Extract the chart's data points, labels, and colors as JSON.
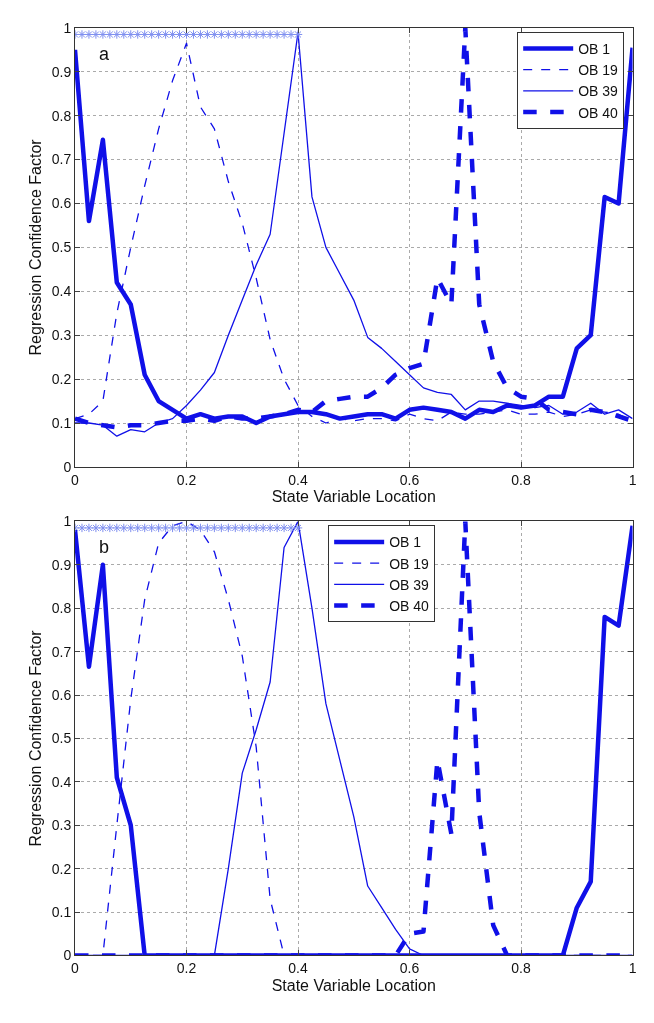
{
  "chart_data": [
    {
      "type": "line",
      "xlabel": "State Variable Location",
      "ylabel": "Regression Confidence Factor",
      "annotations": [
        "a"
      ],
      "xlim": [
        0,
        1
      ],
      "ylim": [
        0,
        1
      ],
      "xticks": [
        0,
        0.2,
        0.4,
        0.6,
        0.8,
        1
      ],
      "yticks": [
        0,
        0.1,
        0.2,
        0.3,
        0.4,
        0.5,
        0.6,
        0.7,
        0.8,
        0.9,
        1
      ],
      "grid": true,
      "legend": "top right",
      "x": [
        0,
        0.025,
        0.05,
        0.075,
        0.1,
        0.125,
        0.15,
        0.175,
        0.2,
        0.225,
        0.25,
        0.275,
        0.3,
        0.325,
        0.35,
        0.375,
        0.4,
        0.425,
        0.45,
        0.475,
        0.5,
        0.525,
        0.55,
        0.575,
        0.6,
        0.625,
        0.65,
        0.675,
        0.7,
        0.725,
        0.75,
        0.775,
        0.8,
        0.825,
        0.85,
        0.875,
        0.9,
        0.925,
        0.95,
        0.975,
        1
      ],
      "series": [
        {
          "name": "OB 1",
          "color": "#1010e8",
          "line_style": "solid",
          "values": [
            0.95,
            0.56,
            0.745,
            0.42,
            0.37,
            0.21,
            0.15,
            0.13,
            0.11,
            0.12,
            0.11,
            0.115,
            0.115,
            0.1,
            0.115,
            0.12,
            0.125,
            0.125,
            0.12,
            0.11,
            0.115,
            0.12,
            0.12,
            0.11,
            0.13,
            0.135,
            0.13,
            0.125,
            0.11,
            0.13,
            0.125,
            0.14,
            0.135,
            0.14,
            0.16,
            0.16,
            0.27,
            0.3,
            0.615,
            0.6,
            0.955
          ]
        },
        {
          "name": "OB 19",
          "color": "#1010e8",
          "line_style": "dashed",
          "values": [
            0.11,
            0.12,
            0.15,
            0.35,
            0.5,
            0.64,
            0.77,
            0.88,
            0.965,
            0.82,
            0.77,
            0.65,
            0.555,
            0.43,
            0.29,
            0.2,
            0.14,
            0.115,
            0.1,
            0.11,
            0.105,
            0.11,
            0.11,
            0.105,
            0.12,
            0.11,
            0.105,
            0.125,
            0.12,
            0.12,
            0.125,
            0.13,
            0.12,
            0.12,
            0.125,
            0.115,
            0.12,
            0.13,
            0.125,
            0.12,
            0.105
          ]
        },
        {
          "name": "OB 39",
          "color": "#1010e8",
          "line_style": "solid",
          "values": [
            0.1,
            0.1,
            0.095,
            0.07,
            0.085,
            0.08,
            0.1,
            0.11,
            0.14,
            0.175,
            0.215,
            0.3,
            0.38,
            0.46,
            0.53,
            0.76,
            0.99,
            0.615,
            0.5,
            0.44,
            0.38,
            0.295,
            0.27,
            0.24,
            0.21,
            0.18,
            0.17,
            0.165,
            0.13,
            0.15,
            0.15,
            0.145,
            0.14,
            0.135,
            0.14,
            0.12,
            0.125,
            0.145,
            0.12,
            0.13,
            0.11
          ]
        },
        {
          "name": "OB 40",
          "color": "#1010e8",
          "line_style": "dashed",
          "values": [
            0.11,
            0.1,
            0.095,
            0.09,
            0.095,
            0.095,
            0.1,
            0.105,
            0.105,
            0.11,
            0.105,
            0.115,
            0.11,
            0.11,
            0.115,
            0.12,
            0.13,
            0.125,
            0.15,
            0.155,
            0.16,
            0.16,
            0.18,
            0.21,
            0.225,
            0.235,
            0.43,
            0.37,
            1.0,
            0.37,
            0.24,
            0.18,
            0.16,
            0.155,
            0.13,
            0.125,
            0.12,
            0.13,
            0.125,
            0.115,
            0.105
          ]
        },
        {
          "type": "scatter",
          "marker": "cross",
          "color": "#7f8ff0",
          "x": [
            0,
            0.0125,
            0.025,
            0.0375,
            0.05,
            0.0625,
            0.075,
            0.0875,
            0.1,
            0.1125,
            0.125,
            0.1375,
            0.15,
            0.1625,
            0.175,
            0.1875,
            0.2,
            0.2125,
            0.225,
            0.2375,
            0.25,
            0.2625,
            0.275,
            0.2875,
            0.3,
            0.3125,
            0.325,
            0.3375,
            0.35,
            0.3625,
            0.375,
            0.3875,
            0.4
          ],
          "values": [
            0.985,
            0.985,
            0.985,
            0.985,
            0.985,
            0.985,
            0.985,
            0.985,
            0.985,
            0.985,
            0.985,
            0.985,
            0.985,
            0.985,
            0.985,
            0.985,
            0.985,
            0.985,
            0.985,
            0.985,
            0.985,
            0.985,
            0.985,
            0.985,
            0.985,
            0.985,
            0.985,
            0.985,
            0.985,
            0.985,
            0.985,
            0.985,
            0.985
          ]
        }
      ]
    },
    {
      "type": "line",
      "xlabel": "State Variable Location",
      "ylabel": "Regression Confidence Factor",
      "annotations": [
        "b"
      ],
      "xlim": [
        0,
        1
      ],
      "ylim": [
        0,
        1
      ],
      "xticks": [
        0,
        0.2,
        0.4,
        0.6,
        0.8,
        1
      ],
      "yticks": [
        0,
        0.1,
        0.2,
        0.3,
        0.4,
        0.5,
        0.6,
        0.7,
        0.8,
        0.9,
        1
      ],
      "grid": true,
      "legend": "top",
      "x": [
        0,
        0.025,
        0.05,
        0.075,
        0.1,
        0.125,
        0.15,
        0.175,
        0.2,
        0.225,
        0.25,
        0.275,
        0.3,
        0.325,
        0.35,
        0.375,
        0.4,
        0.425,
        0.45,
        0.475,
        0.5,
        0.525,
        0.55,
        0.575,
        0.6,
        0.625,
        0.65,
        0.675,
        0.7,
        0.725,
        0.75,
        0.775,
        0.8,
        0.825,
        0.85,
        0.875,
        0.9,
        0.925,
        0.95,
        0.975,
        1
      ],
      "series": [
        {
          "name": "OB 1",
          "color": "#1010e8",
          "line_style": "solid",
          "values": [
            0.98,
            0.665,
            0.9,
            0.41,
            0.3,
            0,
            0,
            0,
            0,
            0,
            0,
            0,
            0,
            0,
            0,
            0,
            0,
            0,
            0,
            0,
            0,
            0,
            0,
            0,
            0,
            0,
            0,
            0,
            0,
            0,
            0,
            0,
            0,
            0,
            0,
            0,
            0.11,
            0.17,
            0.78,
            0.76,
            0.99
          ]
        },
        {
          "name": "OB 19",
          "color": "#1010e8",
          "line_style": "dashed",
          "values": [
            0,
            0,
            0,
            0.3,
            0.59,
            0.82,
            0.95,
            0.99,
            1.0,
            0.98,
            0.93,
            0.82,
            0.69,
            0.48,
            0.13,
            0,
            0,
            0,
            0,
            0,
            0,
            0,
            0,
            0,
            0,
            0,
            0,
            0,
            0,
            0,
            0,
            0,
            0,
            0,
            0,
            0,
            0,
            0,
            0,
            0,
            0
          ]
        },
        {
          "name": "OB 39",
          "color": "#1010e8",
          "line_style": "solid",
          "values": [
            0,
            0,
            0,
            0,
            0,
            0,
            0,
            0,
            0,
            0,
            0,
            0.2,
            0.42,
            0.52,
            0.63,
            0.94,
            1.0,
            0.8,
            0.58,
            0.45,
            0.32,
            0.16,
            0.11,
            0.06,
            0.015,
            0,
            0,
            0,
            0,
            0,
            0,
            0,
            0,
            0,
            0,
            0,
            0,
            0,
            0,
            0,
            0
          ]
        },
        {
          "name": "OB 40",
          "color": "#1010e8",
          "line_style": "dashed",
          "values": [
            0,
            0,
            0,
            0,
            0,
            0,
            0,
            0,
            0,
            0,
            0,
            0,
            0,
            0,
            0,
            0,
            0,
            0,
            0,
            0,
            0,
            0,
            0,
            0,
            0.05,
            0.055,
            0.45,
            0.28,
            1.0,
            0.33,
            0.07,
            0,
            0,
            0,
            0,
            0,
            0,
            0,
            0,
            0,
            0
          ]
        },
        {
          "type": "scatter",
          "marker": "cross",
          "color": "#7f8ff0",
          "x": [
            0,
            0.0125,
            0.025,
            0.0375,
            0.05,
            0.0625,
            0.075,
            0.0875,
            0.1,
            0.1125,
            0.125,
            0.1375,
            0.15,
            0.1625,
            0.175,
            0.1875,
            0.2,
            0.2125,
            0.225,
            0.2375,
            0.25,
            0.2625,
            0.275,
            0.2875,
            0.3,
            0.3125,
            0.325,
            0.3375,
            0.35,
            0.3625,
            0.375,
            0.3875,
            0.4
          ],
          "values": [
            0.985,
            0.985,
            0.985,
            0.985,
            0.985,
            0.985,
            0.985,
            0.985,
            0.985,
            0.985,
            0.985,
            0.985,
            0.985,
            0.985,
            0.985,
            0.985,
            0.985,
            0.985,
            0.985,
            0.985,
            0.985,
            0.985,
            0.985,
            0.985,
            0.985,
            0.985,
            0.985,
            0.985,
            0.985,
            0.985,
            0.985,
            0.985,
            0.985
          ]
        }
      ]
    }
  ]
}
